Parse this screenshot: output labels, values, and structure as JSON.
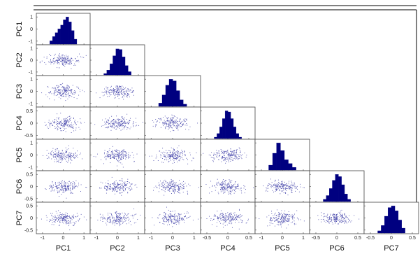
{
  "chart_data": {
    "type": "scatter-matrix",
    "variables": [
      "PC1",
      "PC2",
      "PC3",
      "PC4",
      "PC5",
      "PC6",
      "PC7"
    ],
    "ranges": {
      "PC1": [
        -1.3,
        1.3
      ],
      "PC2": [
        -1.3,
        1.3
      ],
      "PC3": [
        -1.3,
        1.3
      ],
      "PC4": [
        -0.65,
        0.65
      ],
      "PC5": [
        -1.3,
        1.3
      ],
      "PC6": [
        -0.65,
        0.65
      ],
      "PC7": [
        -0.65,
        0.65
      ]
    },
    "ticks": {
      "PC1": [
        "-1",
        "0",
        "1"
      ],
      "PC2": [
        "-1",
        "0",
        "1"
      ],
      "PC3": [
        "-1",
        "0",
        "1"
      ],
      "PC4": [
        "-0.5",
        "0",
        "0.5"
      ],
      "PC5": [
        "-1",
        "0",
        "1"
      ],
      "PC6": [
        "-0.5",
        "0",
        "0.5"
      ],
      "PC7": [
        "-0.5",
        "0",
        "0.5"
      ]
    },
    "row_tick_labels": {
      "PC1": [
        "1",
        "0",
        "-1"
      ],
      "PC2": [
        "1",
        "0",
        "-1"
      ],
      "PC3": [
        "1",
        "0",
        "-1"
      ],
      "PC4": [
        "0.5",
        "0",
        "-0.5"
      ],
      "PC5": [
        "1",
        "0",
        "-1"
      ],
      "PC6": [
        "0.5",
        "0",
        "-0.5"
      ],
      "PC7": [
        "0.5",
        "0",
        "-0.5"
      ]
    },
    "histogram_bins": {
      "PC1": [
        0.12,
        0.28,
        0.42,
        0.56,
        0.7,
        0.9,
        1.0,
        0.82,
        0.5,
        0.18
      ],
      "PC2": [
        0.05,
        0.18,
        0.42,
        0.72,
        0.98,
        0.96,
        0.68,
        0.35,
        0.12
      ],
      "PC3": [
        0.12,
        0.42,
        0.78,
        1.0,
        0.94,
        0.58,
        0.24,
        0.08
      ],
      "PC4": [
        0.05,
        0.18,
        0.42,
        0.72,
        1.0,
        0.96,
        0.72,
        0.42,
        0.18,
        0.05
      ],
      "PC5": [
        0.18,
        0.62,
        1.0,
        0.72,
        0.38,
        0.24,
        0.1
      ],
      "PC6": [
        0.08,
        0.22,
        0.48,
        0.78,
        1.0,
        0.92,
        0.62,
        0.28,
        0.08
      ],
      "PC7": [
        0.08,
        0.28,
        0.62,
        0.94,
        1.0,
        0.82,
        0.48,
        0.18
      ]
    },
    "scatter": "pairwise scatter plots of principal component scores below the diagonal",
    "grid": false,
    "marker_color": "#4444aa",
    "bar_color": "#000080"
  }
}
